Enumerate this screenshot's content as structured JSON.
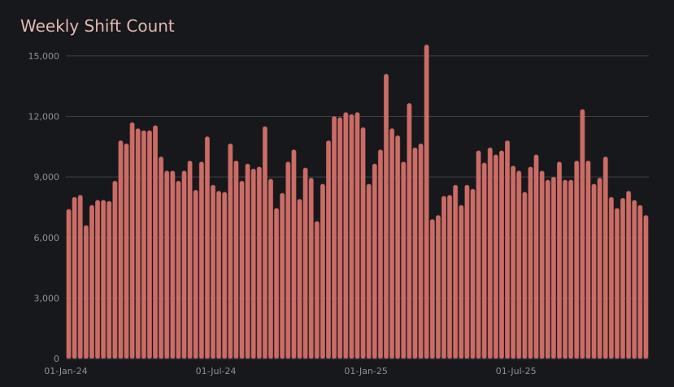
{
  "title": "Weekly Shift Count",
  "colors": {
    "background": "#17181c",
    "bar": "#c96d67",
    "title": "#e2b9b3",
    "grid": "#3f4046",
    "tick": "#8f8f96"
  },
  "chart_data": {
    "type": "bar",
    "title": "Weekly Shift Count",
    "xlabel": "",
    "ylabel": "",
    "ylim": [
      0,
      16000
    ],
    "yticks": [
      0,
      3000,
      6000,
      9000,
      12000,
      15000
    ],
    "ytick_labels": [
      "0",
      "3,000",
      "6,000",
      "9,000",
      "12,000",
      "15,000"
    ],
    "xtick_labels": [
      "01-Jan-24",
      "01-Jul-24",
      "01-Jan-25",
      "01-Jul-25"
    ],
    "xtick_positions": [
      0,
      26,
      52,
      78
    ],
    "grid": "horizontal",
    "x_start_week": "01-Jan-24",
    "values": [
      7400,
      8000,
      8100,
      6600,
      7600,
      7850,
      7850,
      7800,
      8800,
      10800,
      10650,
      11700,
      11400,
      11300,
      11300,
      11550,
      10000,
      9300,
      9300,
      8800,
      9300,
      9800,
      8350,
      9750,
      11000,
      8600,
      8300,
      8250,
      10650,
      9800,
      8800,
      9650,
      9400,
      9500,
      11500,
      8900,
      7450,
      8200,
      9750,
      10350,
      7900,
      9450,
      8950,
      6800,
      8650,
      10800,
      12000,
      11950,
      12200,
      12100,
      12200,
      11450,
      8650,
      9650,
      10350,
      14100,
      11400,
      11050,
      9750,
      12650,
      10450,
      10650,
      15550,
      6900,
      7100,
      8050,
      8100,
      8600,
      7600,
      8600,
      8400,
      10300,
      9700,
      10450,
      10100,
      10300,
      10800,
      9550,
      9300,
      8250,
      9500,
      10100,
      9300,
      8850,
      9000,
      9750,
      8850,
      8850,
      9800,
      12350,
      9800,
      8650,
      8950,
      10000,
      8000,
      7450,
      7950,
      8300,
      7850,
      7600,
      7100
    ]
  }
}
